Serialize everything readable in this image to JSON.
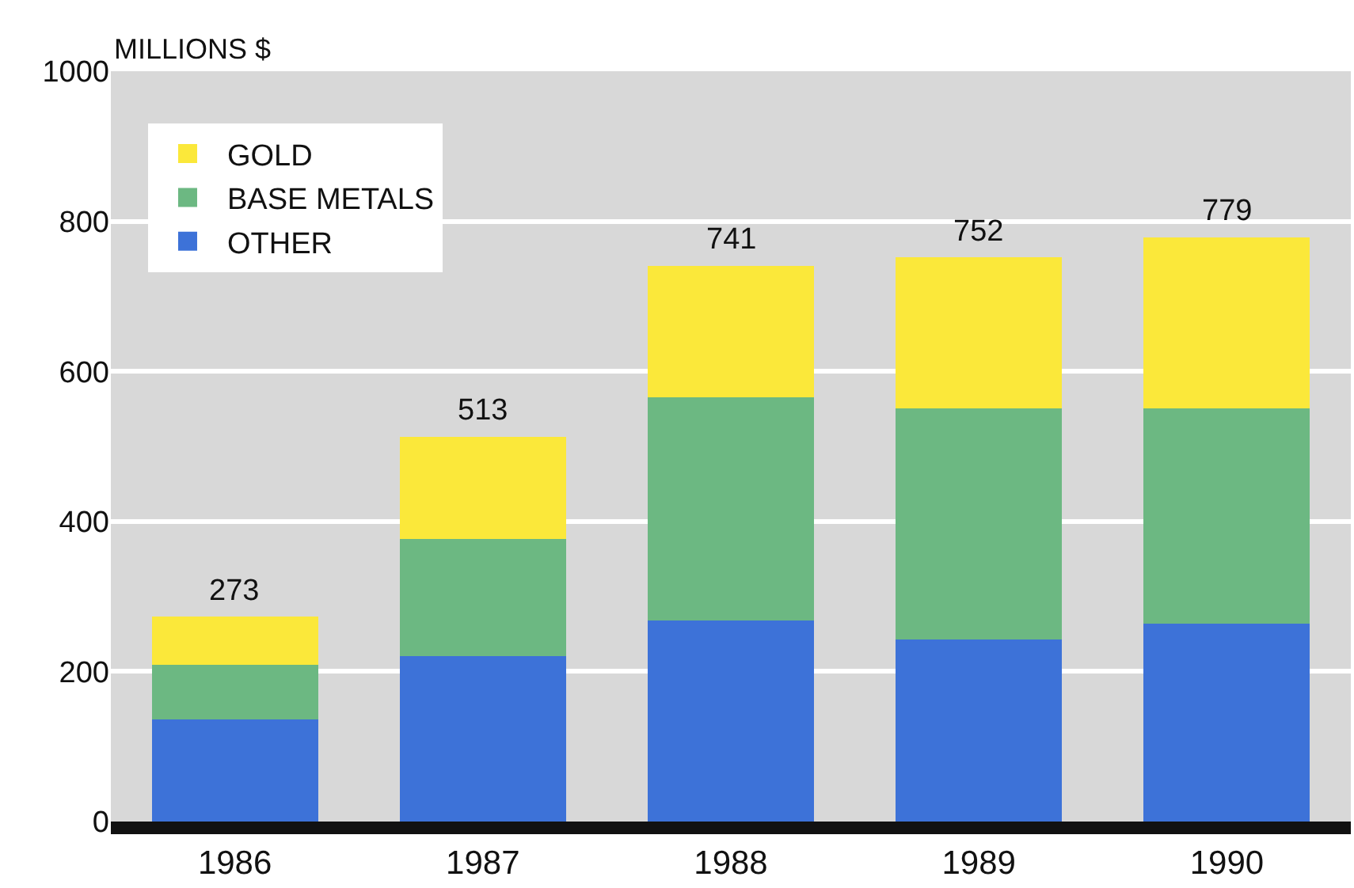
{
  "chart_data": {
    "type": "bar",
    "stacked": true,
    "ylabel": "MILLIONS $",
    "categories": [
      "1986",
      "1987",
      "1988",
      "1989",
      "1990"
    ],
    "series": [
      {
        "name": "OTHER",
        "color": "#3d72d8",
        "values": [
          136,
          220,
          268,
          243,
          264
        ]
      },
      {
        "name": "BASE METALS",
        "color": "#6cb882",
        "values": [
          73,
          157,
          297,
          308,
          287
        ]
      },
      {
        "name": "GOLD",
        "color": "#fbe83a",
        "values": [
          64,
          136,
          176,
          201,
          228
        ]
      }
    ],
    "totals": [
      "273",
      "513",
      "741",
      "752",
      "779"
    ],
    "ylim": [
      0,
      1000
    ],
    "yticks": [
      0,
      200,
      400,
      600,
      800,
      1000
    ],
    "grid": "y",
    "legend": "top left"
  }
}
